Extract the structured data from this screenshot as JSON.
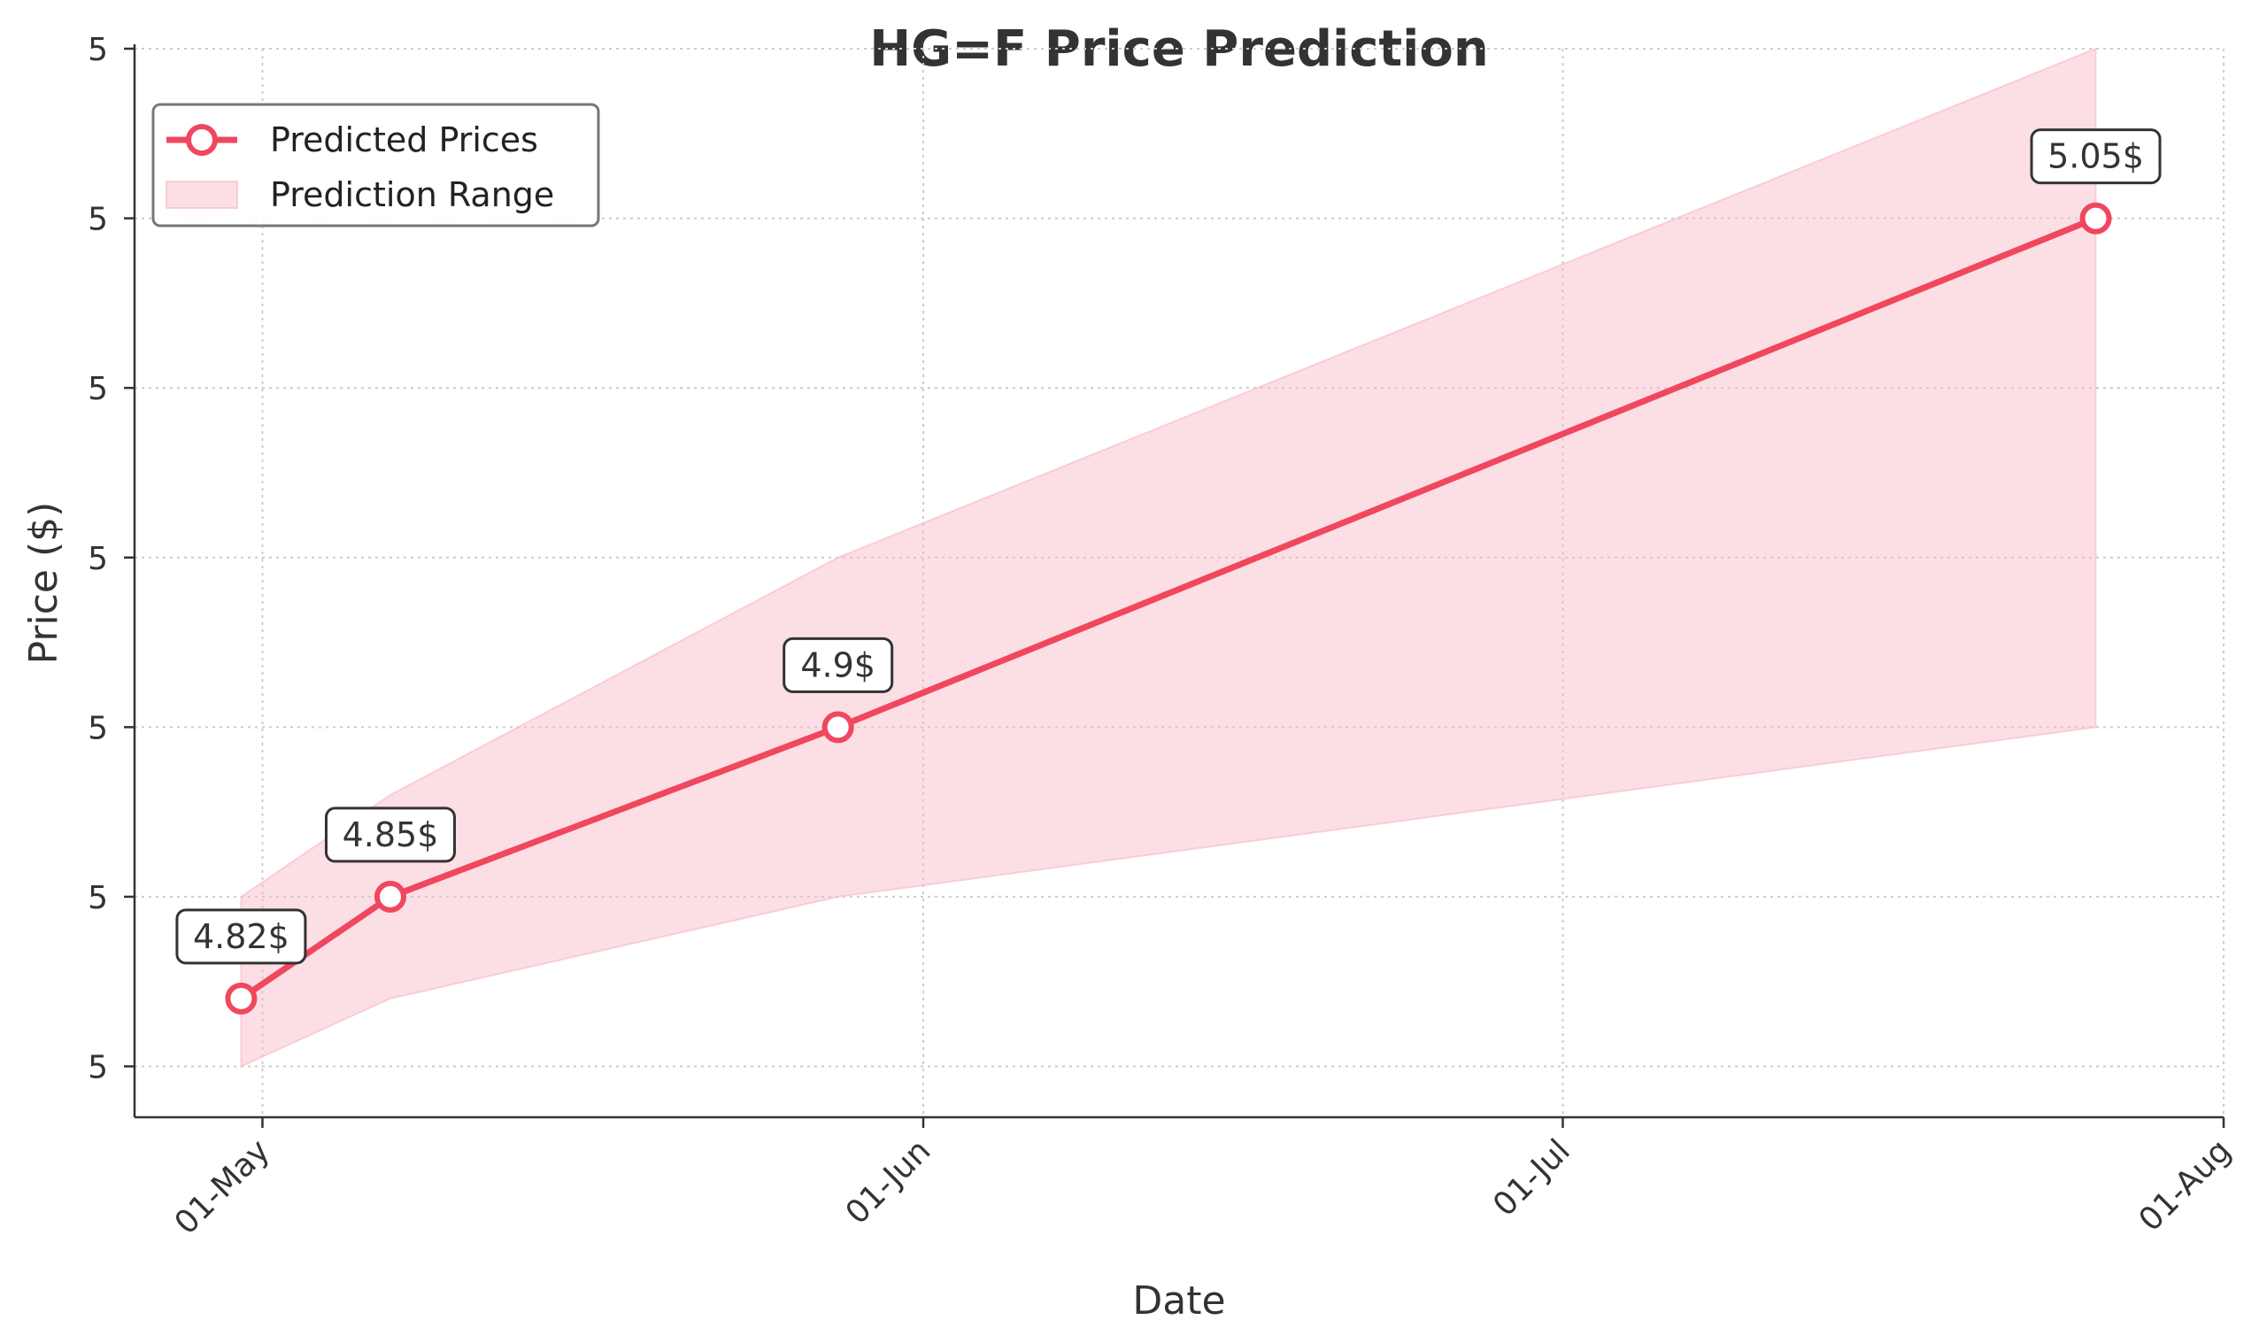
{
  "chart_data": {
    "type": "line",
    "title": "HG=F Price Prediction",
    "xlabel": "Date",
    "ylabel": "Price ($)",
    "x_ticks": [
      {
        "date": "2024-05-01",
        "label": "01-May"
      },
      {
        "date": "2024-06-01",
        "label": "01-Jun"
      },
      {
        "date": "2024-07-01",
        "label": "01-Jul"
      },
      {
        "date": "2024-08-01",
        "label": "01-Aug"
      }
    ],
    "y_ticks": [
      {
        "value": 4.8,
        "label": "5"
      },
      {
        "value": 4.85,
        "label": "5"
      },
      {
        "value": 4.9,
        "label": "5"
      },
      {
        "value": 4.95,
        "label": "5"
      },
      {
        "value": 5.0,
        "label": "5"
      },
      {
        "value": 5.05,
        "label": "5"
      },
      {
        "value": 5.1,
        "label": "5"
      }
    ],
    "xlim": [
      "2024-04-25",
      "2024-08-01"
    ],
    "ylim": [
      4.785,
      5.1
    ],
    "grid": true,
    "legend_position": "top-left",
    "series": [
      {
        "name": "Predicted Prices",
        "type": "line",
        "color": "#f0475f",
        "x": [
          "2024-04-30",
          "2024-05-07",
          "2024-05-28",
          "2024-07-26"
        ],
        "y": [
          4.82,
          4.85,
          4.9,
          5.05
        ]
      },
      {
        "name": "Prediction Range",
        "type": "area",
        "color": "#f8b8c3",
        "x": [
          "2024-04-30",
          "2024-05-07",
          "2024-05-28",
          "2024-07-26"
        ],
        "lower": [
          4.8,
          4.82,
          4.85,
          4.9
        ],
        "upper": [
          4.85,
          4.88,
          4.95,
          5.1
        ]
      }
    ],
    "annotations": [
      {
        "x": "2024-04-30",
        "y": 4.82,
        "text": "4.82$"
      },
      {
        "x": "2024-05-07",
        "y": 4.85,
        "text": "4.85$"
      },
      {
        "x": "2024-05-28",
        "y": 4.9,
        "text": "4.9$"
      },
      {
        "x": "2024-07-26",
        "y": 5.05,
        "text": "5.05$"
      }
    ]
  }
}
